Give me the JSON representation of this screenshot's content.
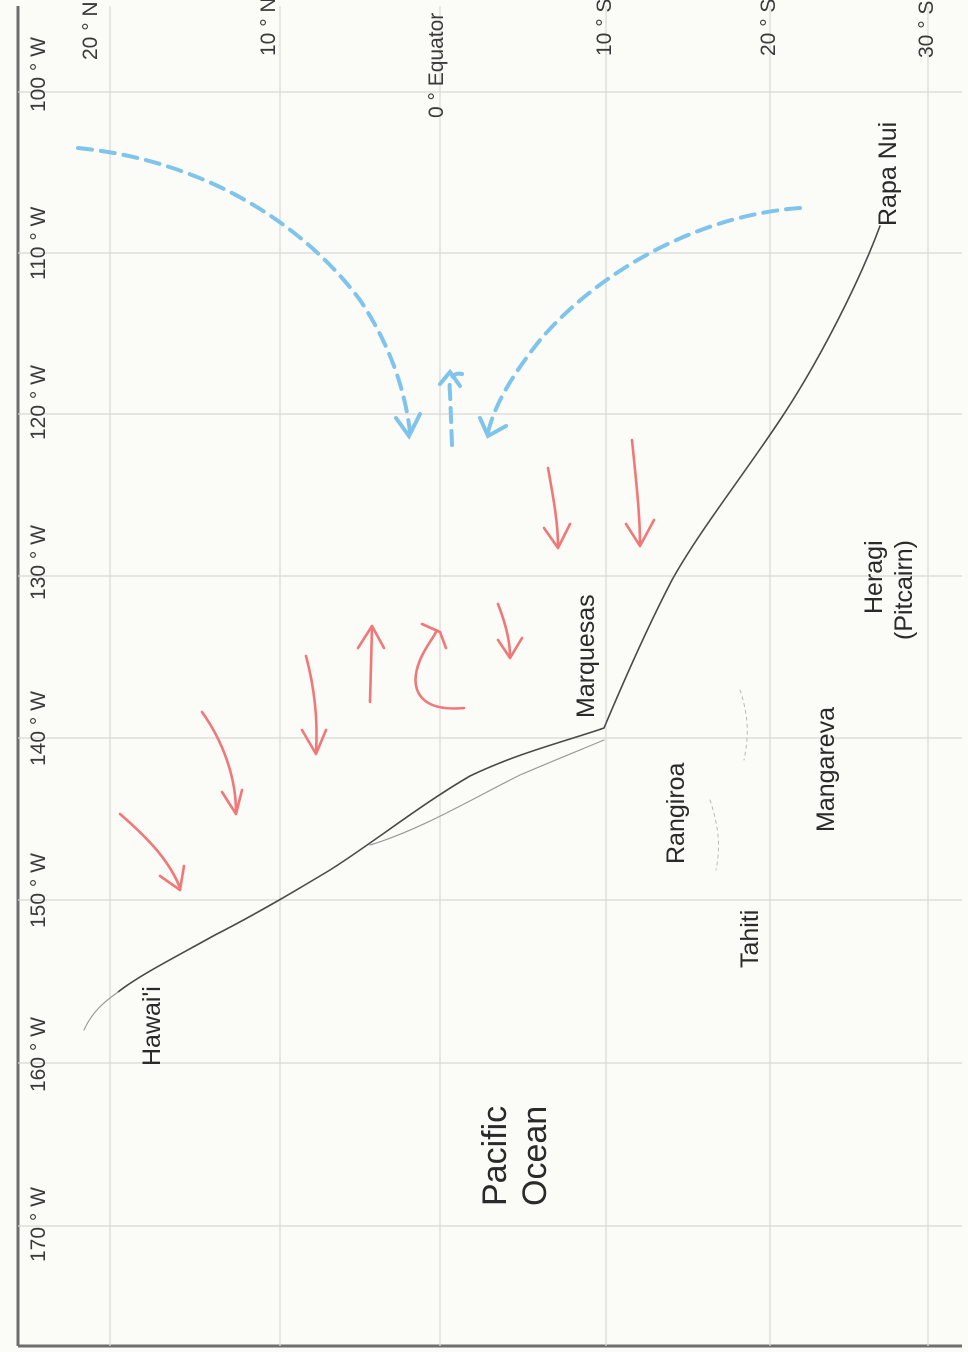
{
  "map": {
    "longitude_ticks": [
      "100 ° W",
      "110 ° W",
      "120 ° W",
      "130 ° W",
      "140 ° W",
      "150 ° W",
      "160 ° W",
      "170 ° W"
    ],
    "latitude_ticks": [
      "20 ° N",
      "10 ° N",
      "0 ° Equator",
      "10 ° S",
      "20 ° S",
      "30 ° S"
    ],
    "places": {
      "hawaii": "Hawai'i",
      "marquesas": "Marquesas",
      "rangiroa": "Rangiroa",
      "tahiti": "Tahiti",
      "mangareva": "Mangareva",
      "heragi_line1": "Heragi",
      "heragi_line2": "(Pitcairn)",
      "rapa_nui": "Rapa Nui"
    },
    "ocean_line1": "Pacific",
    "ocean_line2": "Ocean",
    "colors": {
      "route": "#4a4a4a",
      "wind_arrows": "#f07878",
      "currents": "#7fc4ea",
      "grid": "#d8d8d4",
      "frame": "#6e6e6e"
    }
  }
}
